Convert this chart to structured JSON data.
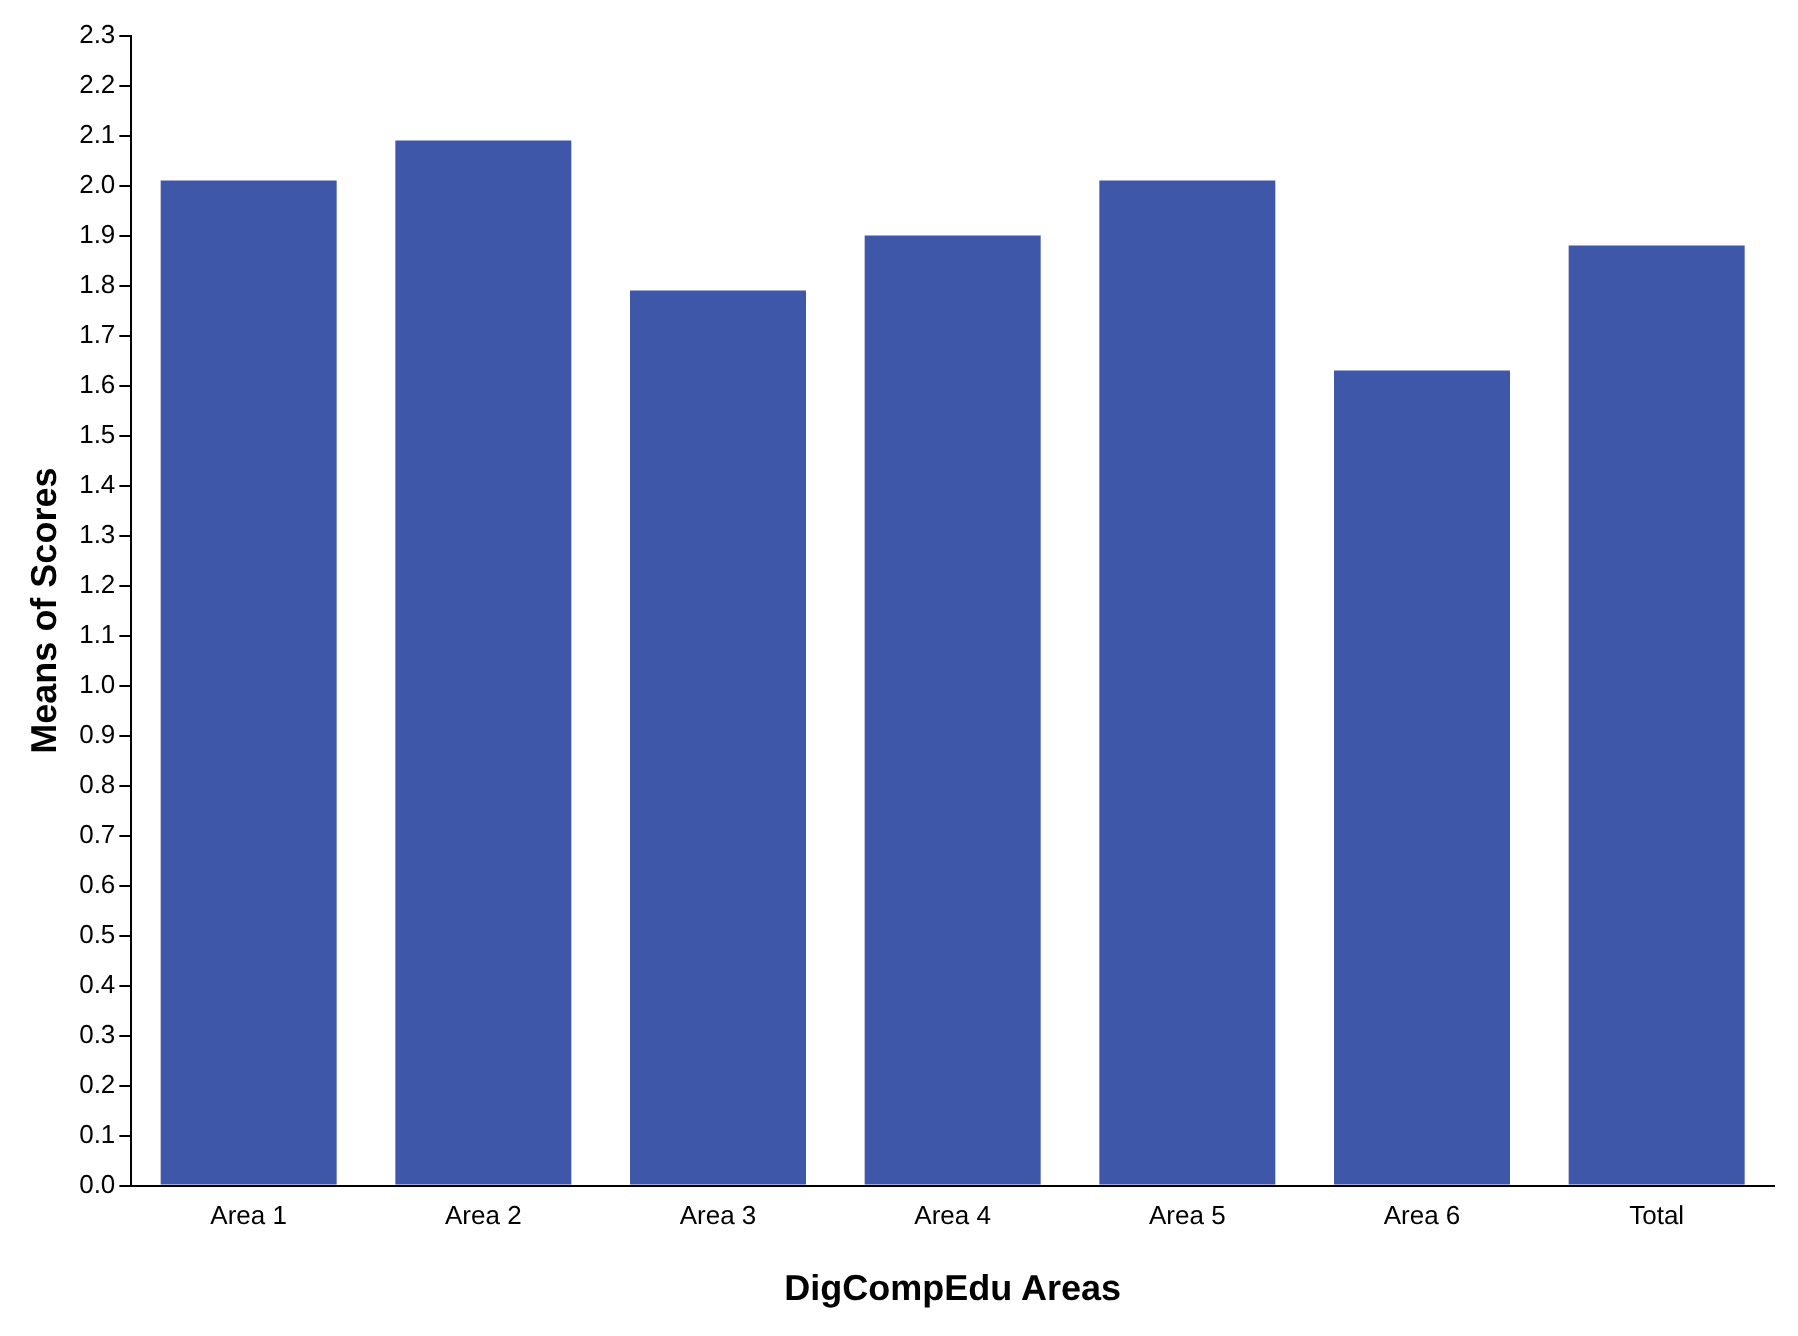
{
  "chart_data": {
    "type": "bar",
    "xlabel": "DigCompEdu Areas",
    "ylabel": "Means of Scores",
    "categories": [
      "Area 1",
      "Area 2",
      "Area 3",
      "Area 4",
      "Area 5",
      "Area 6",
      "Total"
    ],
    "values": [
      2.01,
      2.09,
      1.79,
      1.9,
      2.01,
      1.63,
      1.88
    ],
    "color": "#3f57a8",
    "ylim": [
      0,
      2.3
    ],
    "yticks": [
      {
        "value": 0,
        "label": "0.0"
      },
      {
        "value": 0.1,
        "label": "0.1"
      },
      {
        "value": 0.2,
        "label": "0.2"
      },
      {
        "value": 0.3,
        "label": "0.3"
      },
      {
        "value": 0.4,
        "label": "0.4"
      },
      {
        "value": 0.5,
        "label": "0.5"
      },
      {
        "value": 0.6,
        "label": "0.6"
      },
      {
        "value": 0.7,
        "label": "0.7"
      },
      {
        "value": 0.8,
        "label": "0.8"
      },
      {
        "value": 0.9,
        "label": "0.9"
      },
      {
        "value": 1,
        "label": "1.0"
      },
      {
        "value": 1.1,
        "label": "1.1"
      },
      {
        "value": 1.2,
        "label": "1.2"
      },
      {
        "value": 1.3,
        "label": "1.3"
      },
      {
        "value": 1.4,
        "label": "1.4"
      },
      {
        "value": 1.5,
        "label": "1.5"
      },
      {
        "value": 1.6,
        "label": "1.6"
      },
      {
        "value": 1.7,
        "label": "1.7"
      },
      {
        "value": 1.8,
        "label": "1.8"
      },
      {
        "value": 1.9,
        "label": "1.9"
      },
      {
        "value": 2,
        "label": "2.0"
      },
      {
        "value": 2.1,
        "label": "2.1"
      },
      {
        "value": 2.2,
        "label": "2.2"
      },
      {
        "value": 2.3,
        "label": "2.3"
      }
    ],
    "grid": false,
    "legend": false
  }
}
